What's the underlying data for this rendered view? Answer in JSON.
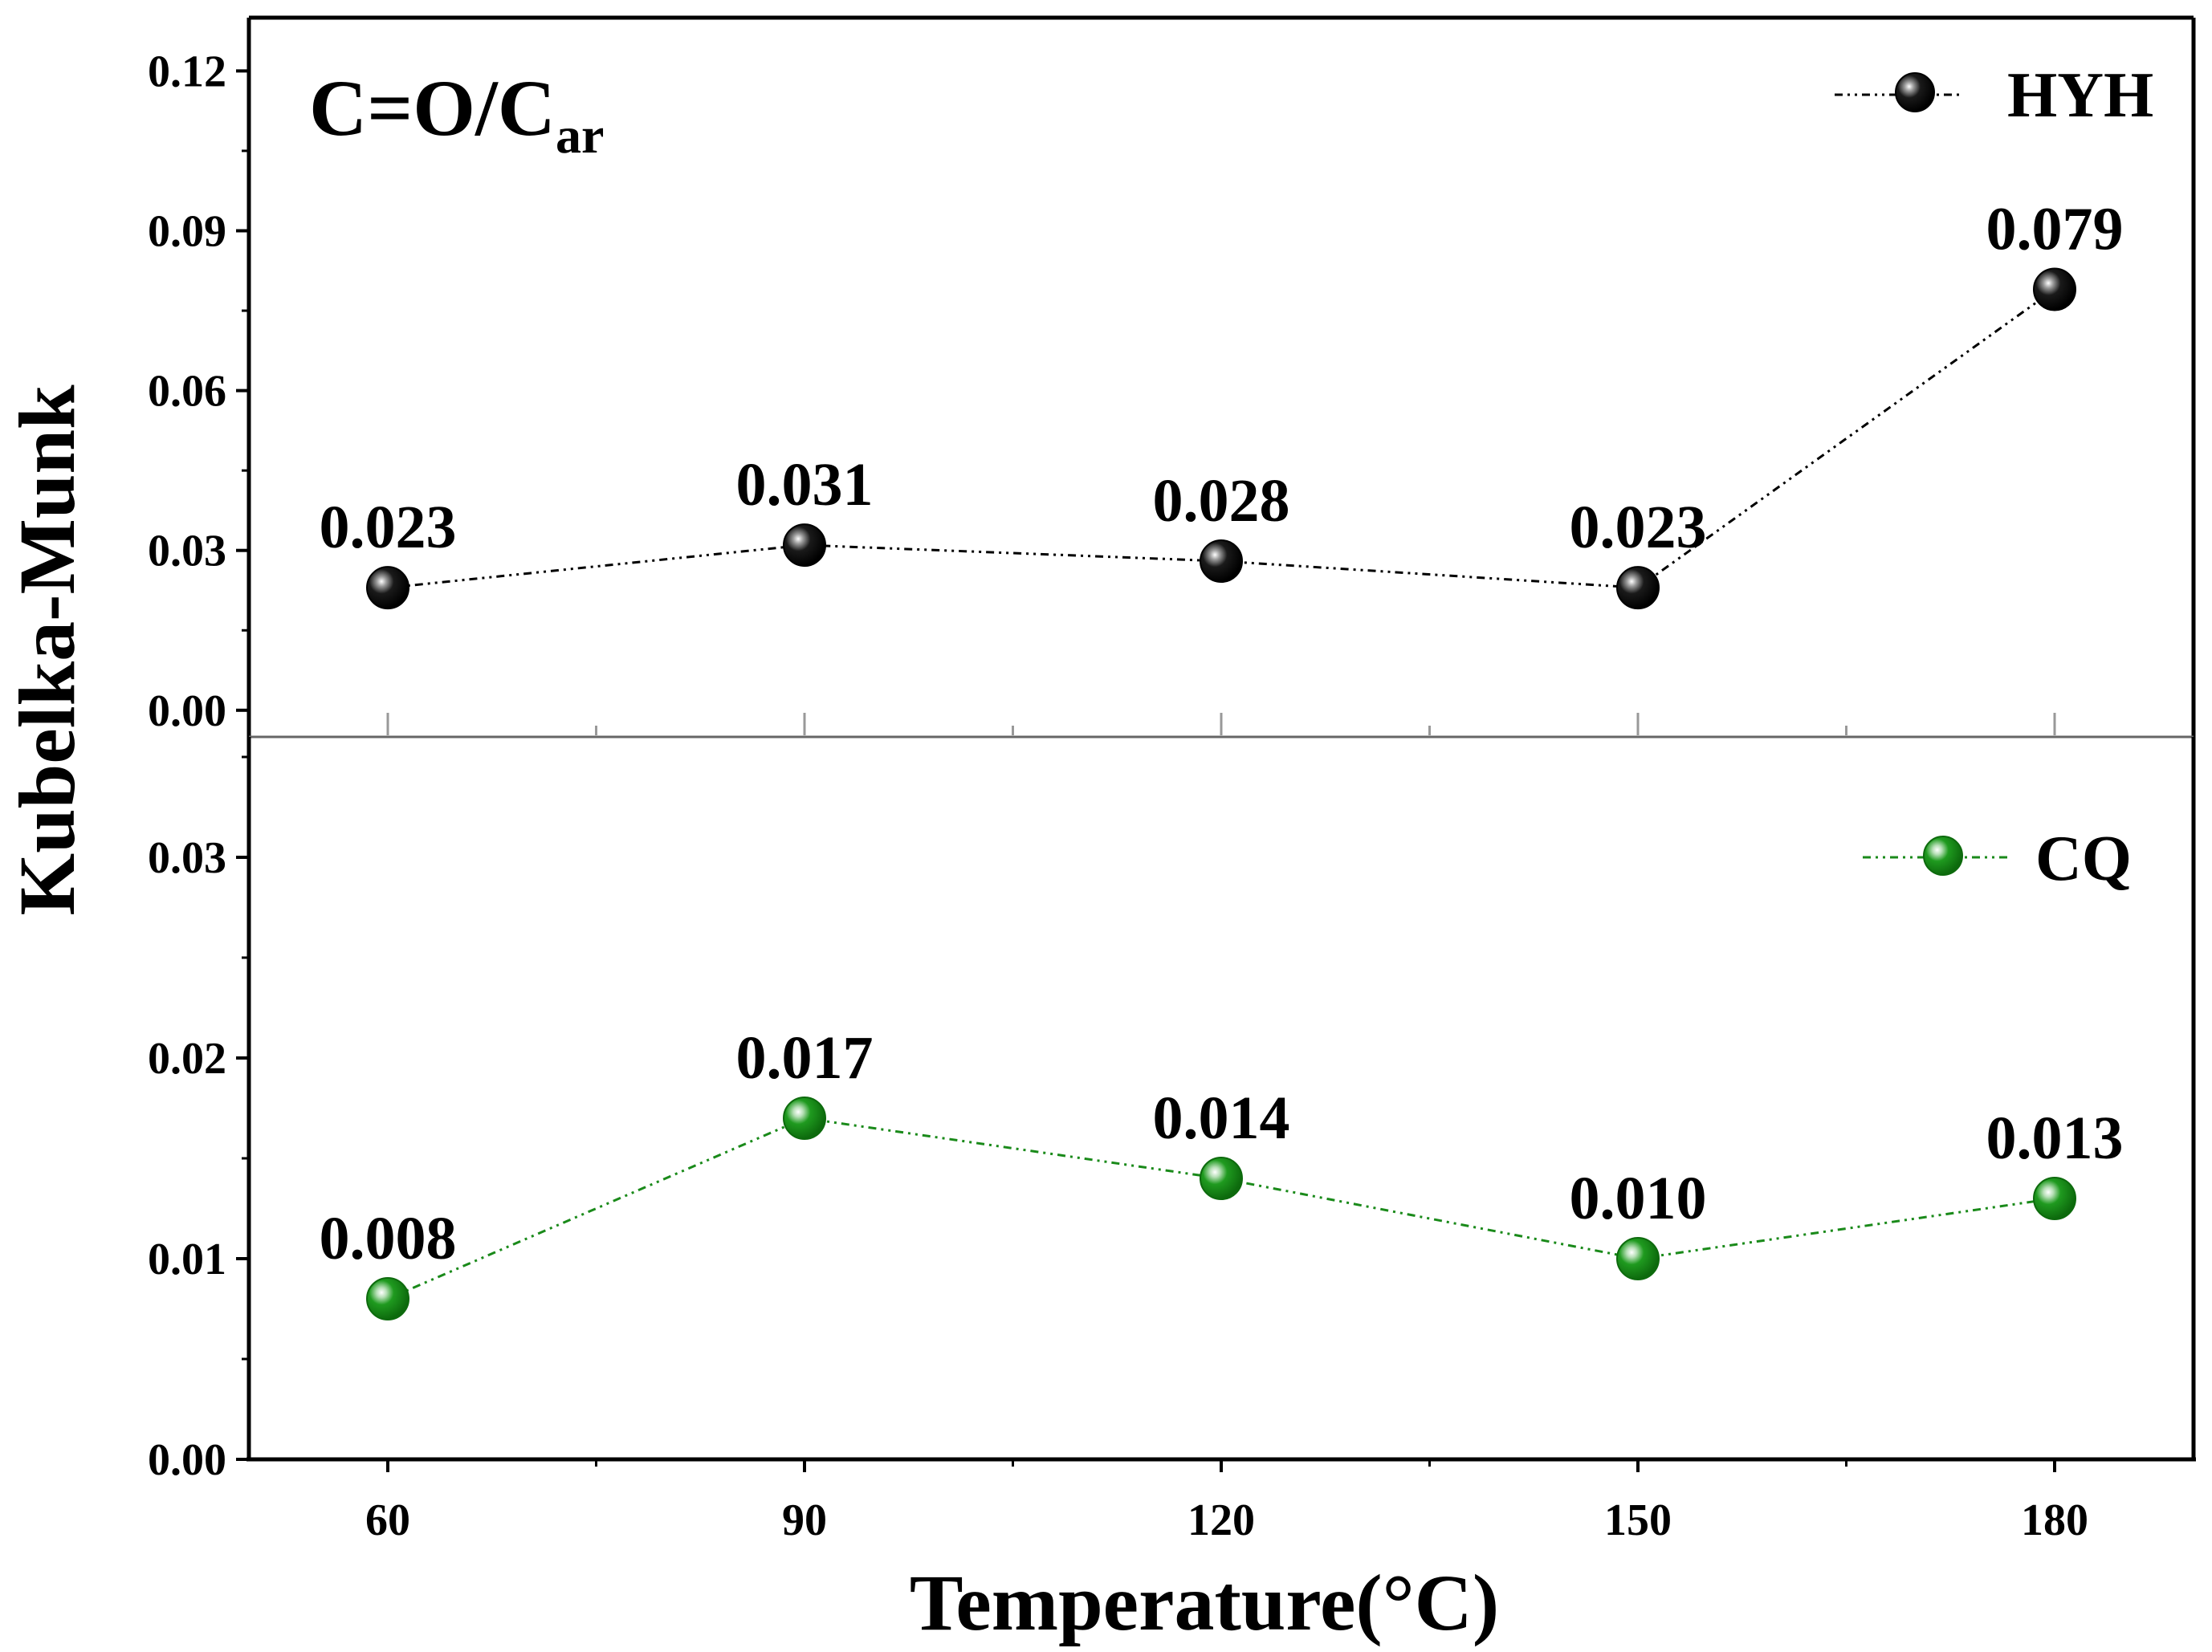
{
  "chart_data": [
    {
      "type": "line",
      "panel": "top",
      "title_main": "C=O/C",
      "title_sub": "ar",
      "x": [
        60,
        90,
        120,
        150,
        180
      ],
      "xlim": [
        50,
        190
      ],
      "ylim": [
        -0.005,
        0.13
      ],
      "yticks": [
        "0.00",
        "0.03",
        "0.06",
        "0.09",
        "0.12"
      ],
      "series": [
        {
          "name": "HYH",
          "color": "#000000",
          "values": [
            0.023,
            0.031,
            0.028,
            0.023,
            0.079
          ],
          "labels": [
            "0.023",
            "0.031",
            "0.028",
            "0.023",
            "0.079"
          ]
        }
      ],
      "legend_position": "top-right"
    },
    {
      "type": "line",
      "panel": "bottom",
      "x": [
        60,
        90,
        120,
        150,
        180
      ],
      "xlim": [
        50,
        190
      ],
      "ylim": [
        0,
        0.036
      ],
      "yticks": [
        "0.00",
        "0.01",
        "0.02",
        "0.03"
      ],
      "series": [
        {
          "name": "CQ",
          "color": "#1a8a1a",
          "values": [
            0.008,
            0.017,
            0.014,
            0.01,
            0.013
          ],
          "labels": [
            "0.008",
            "0.017",
            "0.014",
            "0.010",
            "0.013"
          ]
        }
      ],
      "legend_position": "top-right"
    }
  ],
  "axes": {
    "xlabel": "Temperature(°C)",
    "ylabel": "Kubelka-Munk",
    "xticks": [
      "60",
      "90",
      "120",
      "150",
      "180"
    ]
  }
}
